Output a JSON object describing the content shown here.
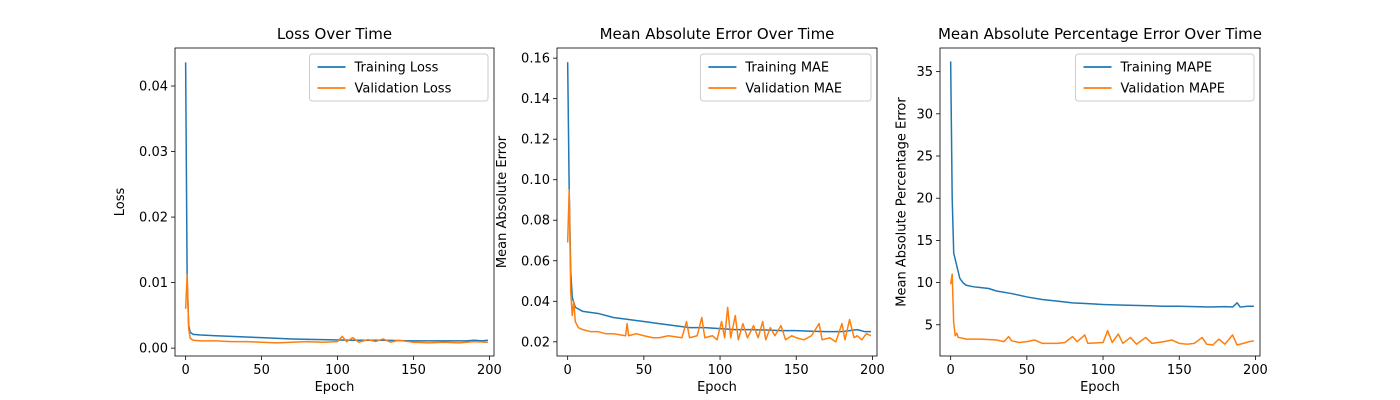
{
  "colors": {
    "training": "#1f77b4",
    "validation": "#ff7f0e"
  },
  "chart_data": [
    {
      "type": "line",
      "title": "Loss Over Time",
      "xlabel": "Epoch",
      "ylabel": "Loss",
      "xlim": [
        -7,
        203
      ],
      "ylim": [
        -0.0012,
        0.0458
      ],
      "xticks": [
        0,
        50,
        100,
        150,
        200
      ],
      "xtick_labels": [
        "0",
        "50",
        "100",
        "150",
        "200"
      ],
      "yticks": [
        0.0,
        0.01,
        0.02,
        0.03,
        0.04
      ],
      "ytick_labels": [
        "0.00",
        "0.01",
        "0.02",
        "0.03",
        "0.04"
      ],
      "legend_position": "top-right",
      "series": [
        {
          "name": "Training Loss",
          "color_key": "training",
          "points": [
            [
              0,
              0.0436
            ],
            [
              1,
              0.0105
            ],
            [
              2,
              0.0035
            ],
            [
              3,
              0.0024
            ],
            [
              5,
              0.0021
            ],
            [
              10,
              0.002
            ],
            [
              20,
              0.0019
            ],
            [
              30,
              0.0018
            ],
            [
              50,
              0.0016
            ],
            [
              70,
              0.0014
            ],
            [
              90,
              0.0013
            ],
            [
              110,
              0.0012
            ],
            [
              130,
              0.0012
            ],
            [
              150,
              0.0011
            ],
            [
              170,
              0.0011
            ],
            [
              185,
              0.0011
            ],
            [
              190,
              0.0012
            ],
            [
              195,
              0.0011
            ],
            [
              199,
              0.0012
            ]
          ]
        },
        {
          "name": "Validation Loss",
          "color_key": "validation",
          "points": [
            [
              0,
              0.006
            ],
            [
              1,
              0.0112
            ],
            [
              2,
              0.003
            ],
            [
              3,
              0.0015
            ],
            [
              5,
              0.0012
            ],
            [
              10,
              0.0011
            ],
            [
              20,
              0.0011
            ],
            [
              30,
              0.001
            ],
            [
              40,
              0.001
            ],
            [
              50,
              0.0009
            ],
            [
              60,
              0.0008
            ],
            [
              70,
              0.0009
            ],
            [
              80,
              0.001
            ],
            [
              90,
              0.0009
            ],
            [
              100,
              0.001
            ],
            [
              103,
              0.0018
            ],
            [
              106,
              0.001
            ],
            [
              110,
              0.0016
            ],
            [
              114,
              0.0009
            ],
            [
              120,
              0.0013
            ],
            [
              125,
              0.001
            ],
            [
              130,
              0.0014
            ],
            [
              135,
              0.0009
            ],
            [
              140,
              0.0012
            ],
            [
              150,
              0.0009
            ],
            [
              160,
              0.0008
            ],
            [
              170,
              0.0009
            ],
            [
              180,
              0.0008
            ],
            [
              190,
              0.001
            ],
            [
              199,
              0.0009
            ]
          ]
        }
      ]
    },
    {
      "type": "line",
      "title": "Mean Absolute Error Over Time",
      "xlabel": "Epoch",
      "ylabel": "Mean Absolute Error",
      "xlim": [
        -7,
        203
      ],
      "ylim": [
        0.013,
        0.165
      ],
      "xticks": [
        0,
        50,
        100,
        150,
        200
      ],
      "xtick_labels": [
        "0",
        "50",
        "100",
        "150",
        "200"
      ],
      "yticks": [
        0.02,
        0.04,
        0.06,
        0.08,
        0.1,
        0.12,
        0.14,
        0.16
      ],
      "ytick_labels": [
        "0.02",
        "0.04",
        "0.06",
        "0.08",
        "0.10",
        "0.12",
        "0.14",
        "0.16"
      ],
      "legend_position": "top-right",
      "series": [
        {
          "name": "Training MAE",
          "color_key": "training",
          "points": [
            [
              0,
              0.158
            ],
            [
              1,
              0.095
            ],
            [
              2,
              0.055
            ],
            [
              3,
              0.042
            ],
            [
              5,
              0.037
            ],
            [
              10,
              0.035
            ],
            [
              20,
              0.034
            ],
            [
              30,
              0.032
            ],
            [
              40,
              0.031
            ],
            [
              50,
              0.03
            ],
            [
              60,
              0.029
            ],
            [
              70,
              0.028
            ],
            [
              80,
              0.027
            ],
            [
              90,
              0.027
            ],
            [
              100,
              0.0265
            ],
            [
              110,
              0.026
            ],
            [
              120,
              0.026
            ],
            [
              130,
              0.0258
            ],
            [
              140,
              0.0255
            ],
            [
              150,
              0.0255
            ],
            [
              160,
              0.0252
            ],
            [
              170,
              0.025
            ],
            [
              180,
              0.025
            ],
            [
              190,
              0.026
            ],
            [
              195,
              0.025
            ],
            [
              199,
              0.025
            ]
          ]
        },
        {
          "name": "Validation MAE",
          "color_key": "validation",
          "points": [
            [
              0,
              0.069
            ],
            [
              1,
              0.095
            ],
            [
              2,
              0.045
            ],
            [
              3,
              0.033
            ],
            [
              4,
              0.04
            ],
            [
              5,
              0.03
            ],
            [
              7,
              0.027
            ],
            [
              10,
              0.026
            ],
            [
              15,
              0.025
            ],
            [
              20,
              0.025
            ],
            [
              25,
              0.024
            ],
            [
              30,
              0.024
            ],
            [
              38,
              0.023
            ],
            [
              39,
              0.029
            ],
            [
              40,
              0.023
            ],
            [
              45,
              0.024
            ],
            [
              50,
              0.023
            ],
            [
              56,
              0.022
            ],
            [
              60,
              0.022
            ],
            [
              66,
              0.023
            ],
            [
              75,
              0.022
            ],
            [
              78,
              0.03
            ],
            [
              80,
              0.022
            ],
            [
              85,
              0.023
            ],
            [
              88,
              0.032
            ],
            [
              90,
              0.022
            ],
            [
              95,
              0.023
            ],
            [
              98,
              0.021
            ],
            [
              101,
              0.03
            ],
            [
              103,
              0.022
            ],
            [
              105,
              0.037
            ],
            [
              107,
              0.022
            ],
            [
              110,
              0.033
            ],
            [
              112,
              0.021
            ],
            [
              115,
              0.029
            ],
            [
              118,
              0.022
            ],
            [
              122,
              0.028
            ],
            [
              125,
              0.022
            ],
            [
              128,
              0.03
            ],
            [
              130,
              0.021
            ],
            [
              133,
              0.027
            ],
            [
              136,
              0.023
            ],
            [
              140,
              0.028
            ],
            [
              143,
              0.021
            ],
            [
              147,
              0.023
            ],
            [
              150,
              0.022
            ],
            [
              155,
              0.021
            ],
            [
              160,
              0.023
            ],
            [
              165,
              0.029
            ],
            [
              167,
              0.021
            ],
            [
              172,
              0.022
            ],
            [
              176,
              0.02
            ],
            [
              180,
              0.029
            ],
            [
              182,
              0.021
            ],
            [
              185,
              0.031
            ],
            [
              188,
              0.022
            ],
            [
              190,
              0.023
            ],
            [
              193,
              0.021
            ],
            [
              196,
              0.024
            ],
            [
              199,
              0.023
            ]
          ]
        }
      ]
    },
    {
      "type": "line",
      "title": "Mean Absolute Percentage Error Over Time",
      "xlabel": "Epoch",
      "ylabel": "Mean Absolute Percentage Error",
      "xlim": [
        -7,
        203
      ],
      "ylim": [
        1.3,
        37.8
      ],
      "xticks": [
        0,
        50,
        100,
        150,
        200
      ],
      "xtick_labels": [
        "0",
        "50",
        "100",
        "150",
        "200"
      ],
      "yticks": [
        5,
        10,
        15,
        20,
        25,
        30,
        35
      ],
      "ytick_labels": [
        "5",
        "10",
        "15",
        "20",
        "25",
        "30",
        "35"
      ],
      "legend_position": "top-right",
      "series": [
        {
          "name": "Training MAPE",
          "color_key": "training",
          "points": [
            [
              0,
              36.2
            ],
            [
              1,
              20.0
            ],
            [
              2,
              13.5
            ],
            [
              4,
              12.0
            ],
            [
              6,
              10.5
            ],
            [
              8,
              10.0
            ],
            [
              10,
              9.7
            ],
            [
              15,
              9.5
            ],
            [
              20,
              9.4
            ],
            [
              25,
              9.3
            ],
            [
              30,
              9.0
            ],
            [
              40,
              8.7
            ],
            [
              50,
              8.3
            ],
            [
              60,
              8.0
            ],
            [
              70,
              7.8
            ],
            [
              80,
              7.6
            ],
            [
              90,
              7.5
            ],
            [
              100,
              7.4
            ],
            [
              110,
              7.35
            ],
            [
              120,
              7.3
            ],
            [
              130,
              7.25
            ],
            [
              140,
              7.2
            ],
            [
              150,
              7.2
            ],
            [
              160,
              7.15
            ],
            [
              170,
              7.1
            ],
            [
              180,
              7.15
            ],
            [
              185,
              7.1
            ],
            [
              188,
              7.6
            ],
            [
              190,
              7.1
            ],
            [
              195,
              7.2
            ],
            [
              199,
              7.2
            ]
          ]
        },
        {
          "name": "Validation MAPE",
          "color_key": "validation",
          "points": [
            [
              0,
              9.8
            ],
            [
              1,
              11.0
            ],
            [
              2,
              5.2
            ],
            [
              3,
              3.7
            ],
            [
              4,
              4.0
            ],
            [
              5,
              3.5
            ],
            [
              8,
              3.4
            ],
            [
              10,
              3.3
            ],
            [
              20,
              3.3
            ],
            [
              30,
              3.2
            ],
            [
              35,
              3.0
            ],
            [
              38,
              3.6
            ],
            [
              40,
              3.1
            ],
            [
              45,
              2.9
            ],
            [
              50,
              3.0
            ],
            [
              55,
              3.2
            ],
            [
              60,
              2.8
            ],
            [
              70,
              2.8
            ],
            [
              75,
              2.9
            ],
            [
              80,
              3.6
            ],
            [
              83,
              3.0
            ],
            [
              88,
              3.8
            ],
            [
              90,
              2.8
            ],
            [
              100,
              2.9
            ],
            [
              103,
              4.3
            ],
            [
              106,
              2.9
            ],
            [
              110,
              3.9
            ],
            [
              113,
              2.8
            ],
            [
              118,
              3.5
            ],
            [
              122,
              2.7
            ],
            [
              128,
              3.5
            ],
            [
              132,
              2.8
            ],
            [
              140,
              3.0
            ],
            [
              145,
              3.2
            ],
            [
              150,
              2.8
            ],
            [
              155,
              2.7
            ],
            [
              160,
              2.8
            ],
            [
              165,
              3.5
            ],
            [
              168,
              2.7
            ],
            [
              172,
              2.6
            ],
            [
              176,
              3.3
            ],
            [
              180,
              2.7
            ],
            [
              185,
              3.8
            ],
            [
              188,
              2.6
            ],
            [
              192,
              2.8
            ],
            [
              196,
              3.0
            ],
            [
              199,
              3.1
            ]
          ]
        }
      ]
    }
  ]
}
